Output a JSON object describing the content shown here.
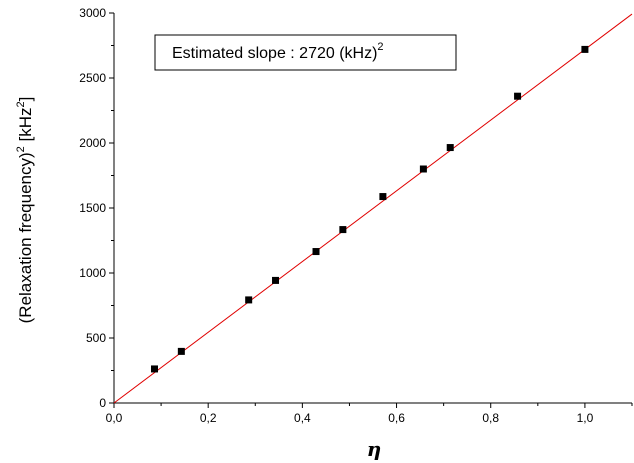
{
  "chart_data": {
    "type": "scatter",
    "title": "",
    "xlabel": "η",
    "ylabel": {
      "main": "(Relaxation frequency)",
      "exp": "2",
      "unit_open": " [kHz",
      "unit_exp": "2",
      "unit_close": "]"
    },
    "xlim": [
      0.0,
      1.1
    ],
    "ylim": [
      0,
      3000
    ],
    "x_ticks": [
      0.0,
      0.2,
      0.4,
      0.6,
      0.8,
      1.0
    ],
    "x_tick_labels": [
      "0,0",
      "0,2",
      "0,4",
      "0,6",
      "0,8",
      "1,0"
    ],
    "y_ticks": [
      0,
      500,
      1000,
      1500,
      2000,
      2500,
      3000
    ],
    "y_tick_labels": [
      "0",
      "500",
      "1000",
      "1500",
      "2000",
      "2500",
      "3000"
    ],
    "grid": false,
    "points": {
      "x": [
        0.086,
        0.143,
        0.286,
        0.343,
        0.429,
        0.486,
        0.571,
        0.657,
        0.714,
        0.857,
        1.0
      ],
      "y": [
        262,
        397,
        793,
        943,
        1165,
        1334,
        1588,
        1800,
        1965,
        2360,
        2720
      ]
    },
    "fit_line": {
      "slope": 2720,
      "intercept": 0,
      "x_range": [
        0.0,
        1.1
      ]
    },
    "annotation": {
      "text": "Estimated slope :  2720 (kHz)",
      "exp": "2"
    },
    "colors": {
      "points": "#000000",
      "fit_line": "#e00000",
      "axes": "#000000"
    }
  }
}
